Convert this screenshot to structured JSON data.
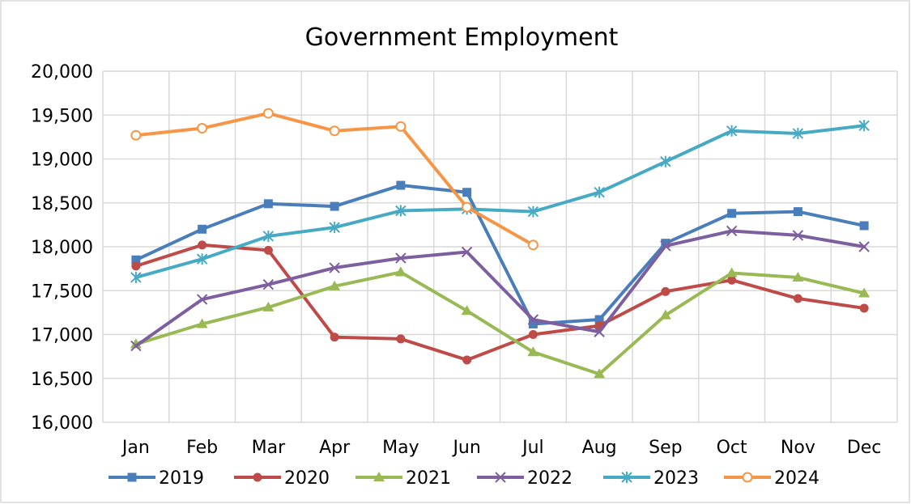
{
  "chart_data": {
    "type": "line",
    "title": "Government Employment",
    "xlabel": "",
    "ylabel": "",
    "categories": [
      "Jan",
      "Feb",
      "Mar",
      "Apr",
      "May",
      "Jun",
      "Jul",
      "Aug",
      "Sep",
      "Oct",
      "Nov",
      "Dec"
    ],
    "ylim": [
      16000,
      20000
    ],
    "yticks": [
      16000,
      16500,
      17000,
      17500,
      18000,
      18500,
      19000,
      19500,
      20000
    ],
    "ytick_labels": [
      "16,000",
      "16,500",
      "17,000",
      "17,500",
      "18,000",
      "18,500",
      "19,000",
      "19,500",
      "20,000"
    ],
    "grid": true,
    "legend_position": "bottom",
    "series": [
      {
        "name": "2019",
        "color": "#4a7ebb",
        "marker": "square",
        "values": [
          17850,
          18200,
          18490,
          18460,
          18700,
          18620,
          17120,
          17170,
          18040,
          18380,
          18400,
          18240
        ]
      },
      {
        "name": "2020",
        "color": "#be4b48",
        "marker": "circle",
        "values": [
          17780,
          18020,
          17960,
          16970,
          16950,
          16710,
          17000,
          17100,
          17490,
          17620,
          17410,
          17300
        ]
      },
      {
        "name": "2021",
        "color": "#98b954",
        "marker": "triangle",
        "values": [
          16890,
          17120,
          17310,
          17550,
          17710,
          17270,
          16800,
          16550,
          17220,
          17700,
          17650,
          17470
        ]
      },
      {
        "name": "2022",
        "color": "#7d5fa0",
        "marker": "x",
        "values": [
          16870,
          17400,
          17570,
          17760,
          17870,
          17940,
          17170,
          17030,
          18010,
          18180,
          18130,
          18000
        ]
      },
      {
        "name": "2023",
        "color": "#46aac5",
        "marker": "star",
        "values": [
          17650,
          17860,
          18120,
          18220,
          18410,
          18430,
          18400,
          18620,
          18970,
          19320,
          19290,
          19380
        ]
      },
      {
        "name": "2024",
        "color": "#f69546",
        "marker": "open-circle",
        "values": [
          19270,
          19350,
          19520,
          19320,
          19370,
          18450,
          18020,
          null,
          null,
          null,
          null,
          null
        ]
      }
    ]
  }
}
